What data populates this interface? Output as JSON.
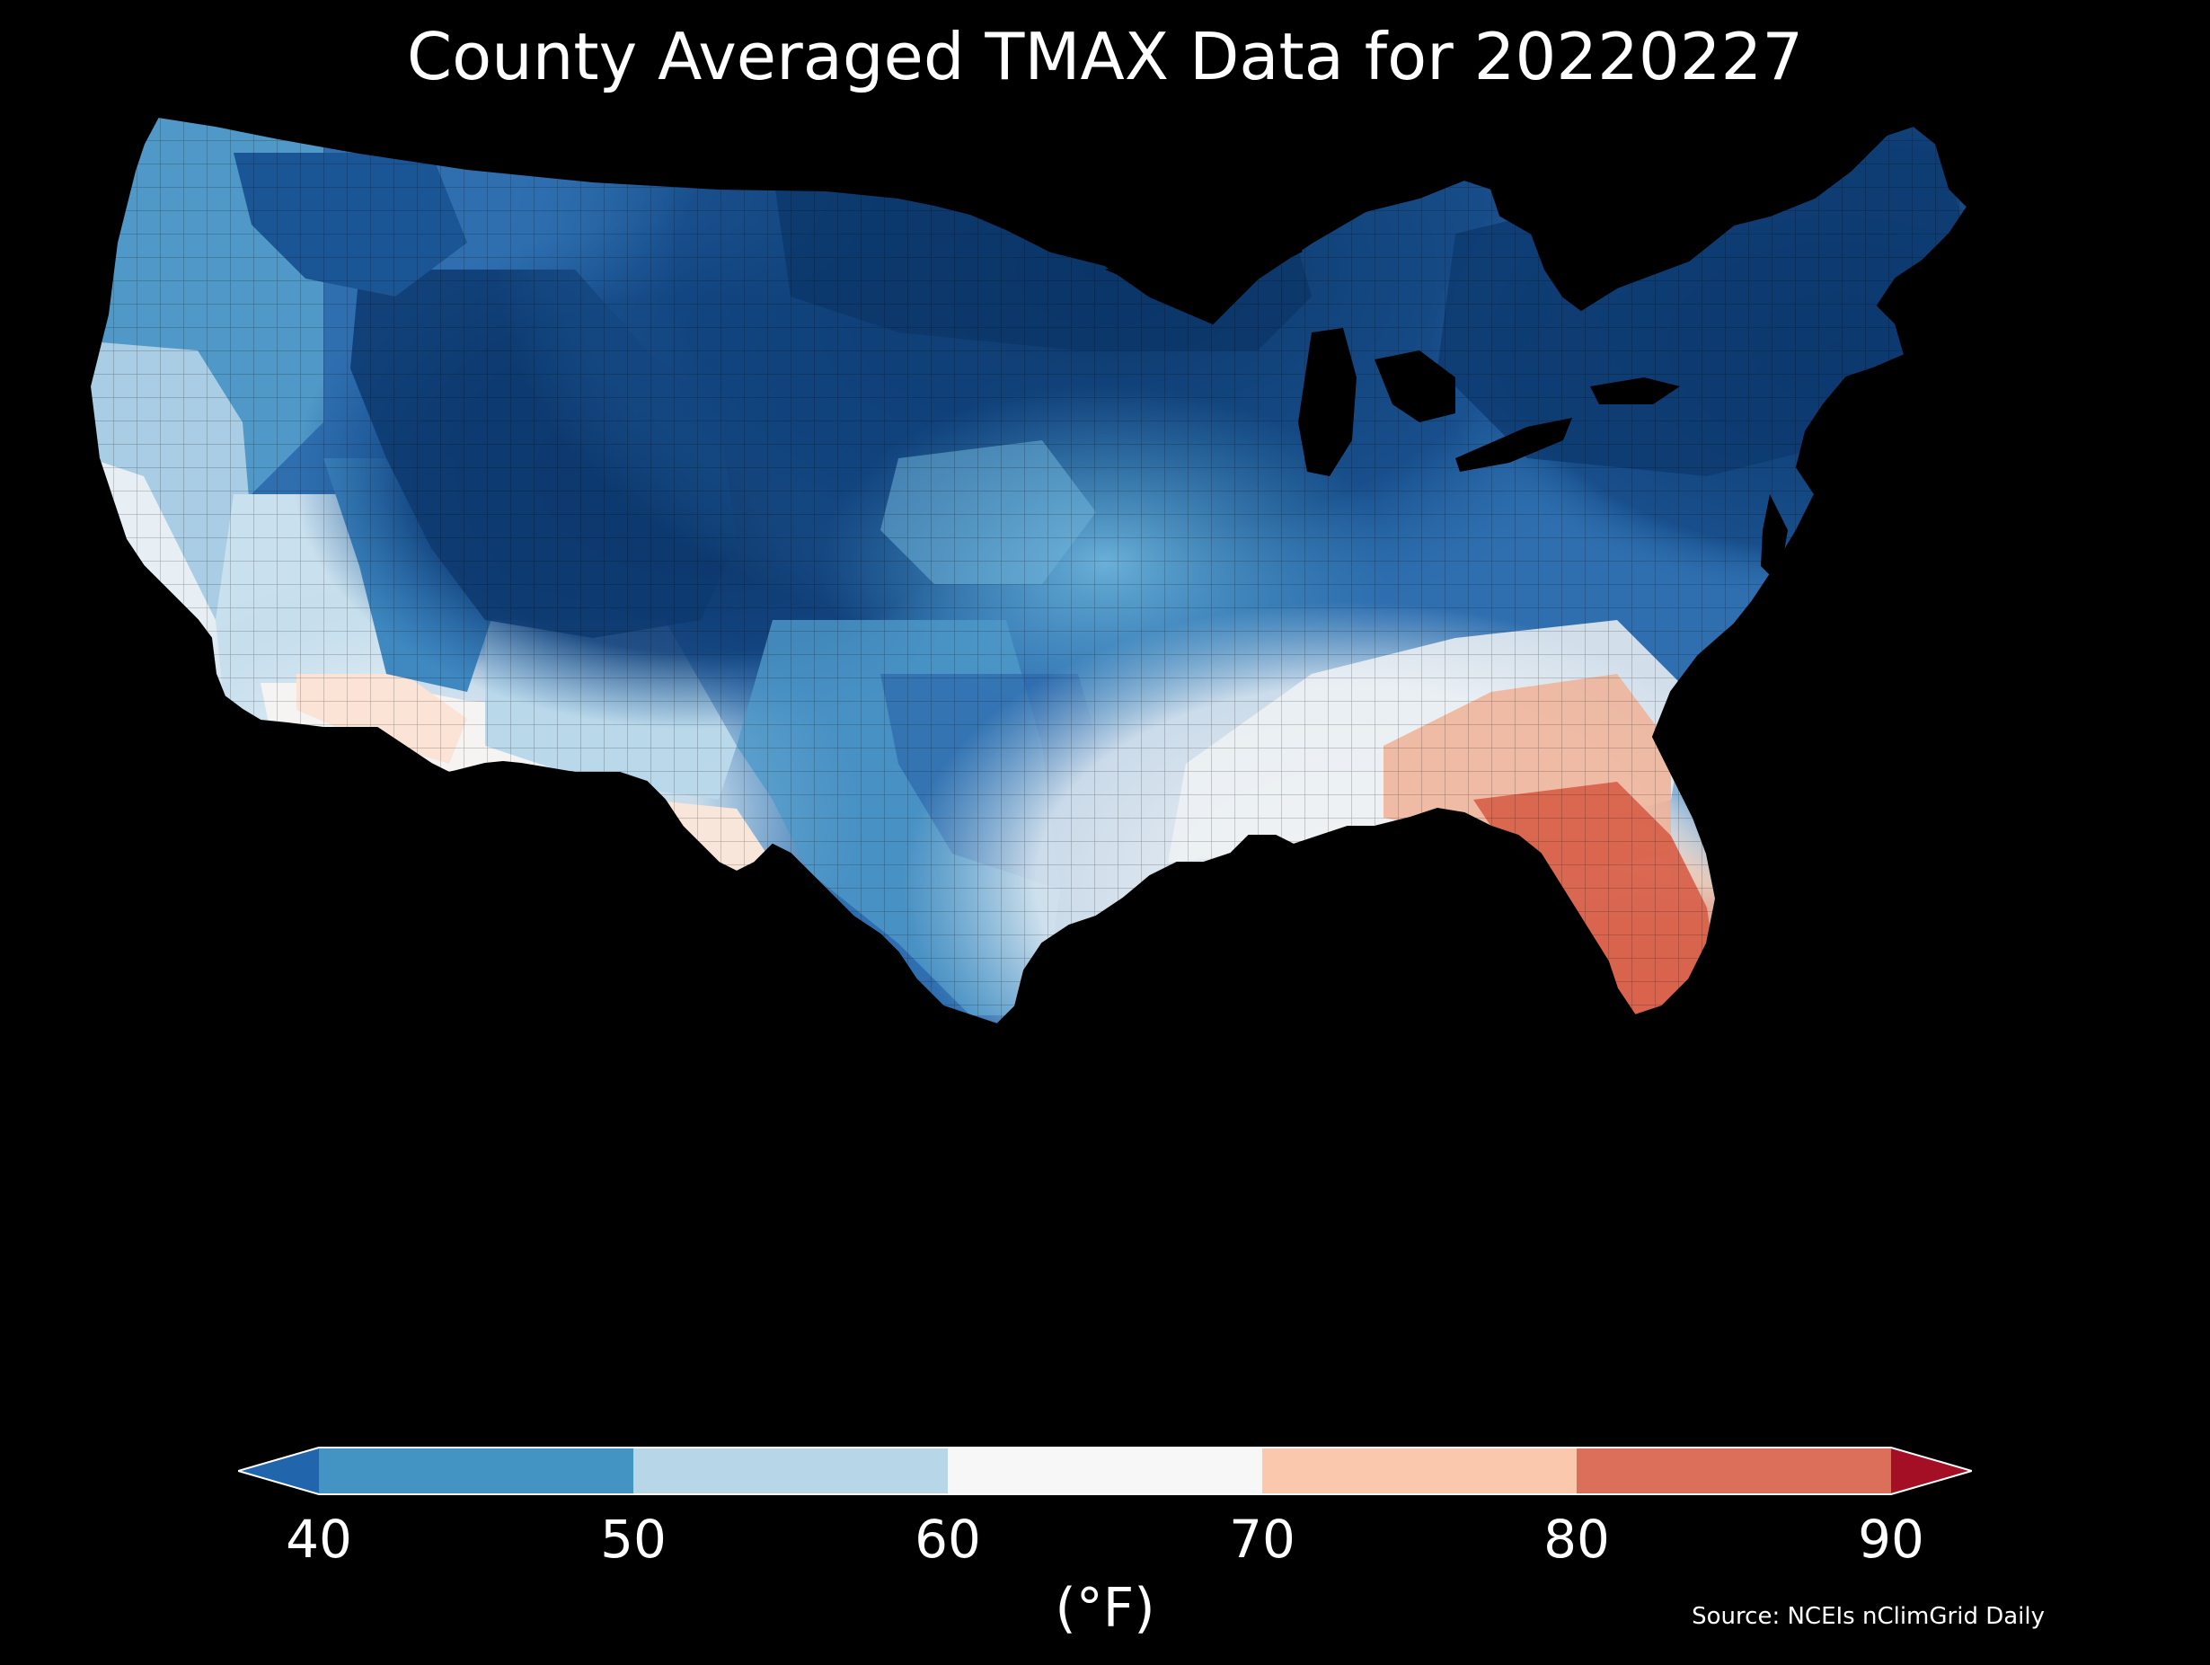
{
  "title": "County Averaged TMAX Data for 20220227",
  "colorbar": {
    "unit_label": "(°F)",
    "ticks": [
      "40",
      "50",
      "60",
      "70",
      "80",
      "90"
    ],
    "bins": [
      {
        "range": "<40",
        "color": "#2166ac"
      },
      {
        "range": "40-50",
        "color": "#4393c3"
      },
      {
        "range": "50-60",
        "color": "#b7d7e8"
      },
      {
        "range": "60-70",
        "color": "#f7f7f7"
      },
      {
        "range": "70-80",
        "color": "#fac8ad"
      },
      {
        "range": "80-90",
        "color": "#dc6f59"
      },
      {
        "range": ">90",
        "color": "#a50f26"
      }
    ],
    "extend": "both"
  },
  "source": "Source: NCEIs nClimGrid Daily",
  "map": {
    "region": "Contiguous United States",
    "variable": "TMAX",
    "background": "#000000",
    "color_regions": [
      {
        "region": "Northern Plains / Upper Midwest / Northeast",
        "approx_bin": "<40",
        "color": "#0b3d74"
      },
      {
        "region": "Rockies / Central Great Basin",
        "approx_bin": "<40",
        "color": "#0d3a6e"
      },
      {
        "region": "Pacific Northwest",
        "approx_bin": "40-50",
        "color": "#3f87bf"
      },
      {
        "region": "Central Plains / Midwest / Mid-South",
        "approx_bin": "40-50",
        "color": "#3574b6"
      },
      {
        "region": "Texas / Southern Plains",
        "approx_bin": "40-50",
        "color": "#4d98c8"
      },
      {
        "region": "California coast / Nevada",
        "approx_bin": "50-60",
        "color": "#b7d7e8"
      },
      {
        "region": "Southern California / Arizona",
        "approx_bin": "60-70",
        "color": "#f4f4f4"
      },
      {
        "region": "Southeast interior / Carolinas",
        "approx_bin": "60-70",
        "color": "#f4f4f4"
      },
      {
        "region": "Georgia / North Florida",
        "approx_bin": "70-80",
        "color": "#f1b69b"
      },
      {
        "region": "Florida peninsula",
        "approx_bin": "80-90",
        "color": "#d8654f"
      }
    ]
  }
}
